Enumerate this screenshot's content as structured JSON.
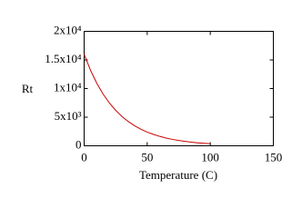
{
  "chart_data": {
    "type": "line",
    "y_label": "Rt",
    "x_label": "Temperature (C)",
    "x": [
      0,
      5,
      10,
      15,
      20,
      25,
      30,
      35,
      40,
      45,
      50,
      55,
      60,
      65,
      70,
      75,
      80,
      85,
      90,
      95,
      100
    ],
    "series": [
      {
        "color": "#cc0000",
        "values": [
          16000,
          13230,
          10940,
          9050,
          7480,
          6190,
          5120,
          4230,
          3500,
          2890,
          2390,
          1980,
          1640,
          1350,
          1120,
          930,
          770,
          630,
          520,
          430,
          360
        ]
      }
    ],
    "xlim": [
      0,
      150
    ],
    "xticks": [
      0,
      50,
      100,
      150
    ],
    "ylim": [
      0,
      20000
    ],
    "yticks": [
      0,
      {
        "value": 5000,
        "label": "5x10³"
      },
      {
        "value": 10000,
        "label": "1x10⁴"
      },
      {
        "value": 15000,
        "label": "1.5x10⁴"
      },
      {
        "value": 20000,
        "label": "2x10⁴"
      }
    ],
    "grid": false
  }
}
